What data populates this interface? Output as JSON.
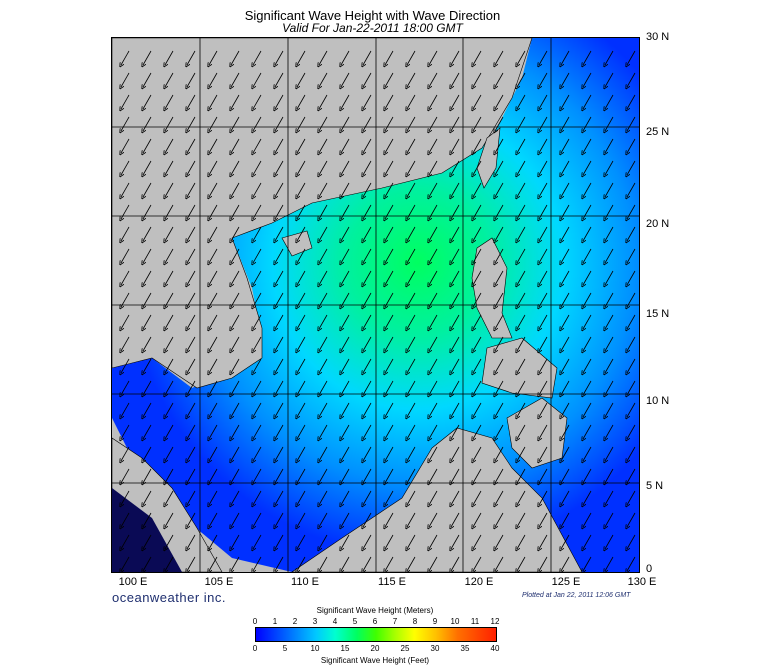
{
  "title": "Significant Wave Height with Wave Direction",
  "subtitle": "Valid For Jan-22-2011 18:00 GMT",
  "lat_labels": [
    "30 N",
    "25 N",
    "20 N",
    "15 N",
    "10 N",
    "5 N",
    "0"
  ],
  "lon_labels": [
    "100 E",
    "105 E",
    "110 E",
    "115 E",
    "120 E",
    "125 E",
    "130 E"
  ],
  "brand": "oceanweather inc.",
  "plotted": "Plotted at Jan 22, 2011 12:06 GMT",
  "legend": {
    "title_meters": "Significant Wave Height (Meters)",
    "title_feet": "Significant Wave Height (Feet)",
    "meters_ticks": [
      "0",
      "1",
      "2",
      "3",
      "4",
      "5",
      "6",
      "7",
      "8",
      "9",
      "10",
      "11",
      "12"
    ],
    "feet_ticks": [
      "0",
      "5",
      "10",
      "15",
      "20",
      "25",
      "30",
      "35",
      "40"
    ]
  },
  "colors": {
    "land": "#bfbfbf",
    "low": "#0000ff",
    "mid": "#00ffd0",
    "high": "#00ff60"
  },
  "arrow_direction": "southwest"
}
